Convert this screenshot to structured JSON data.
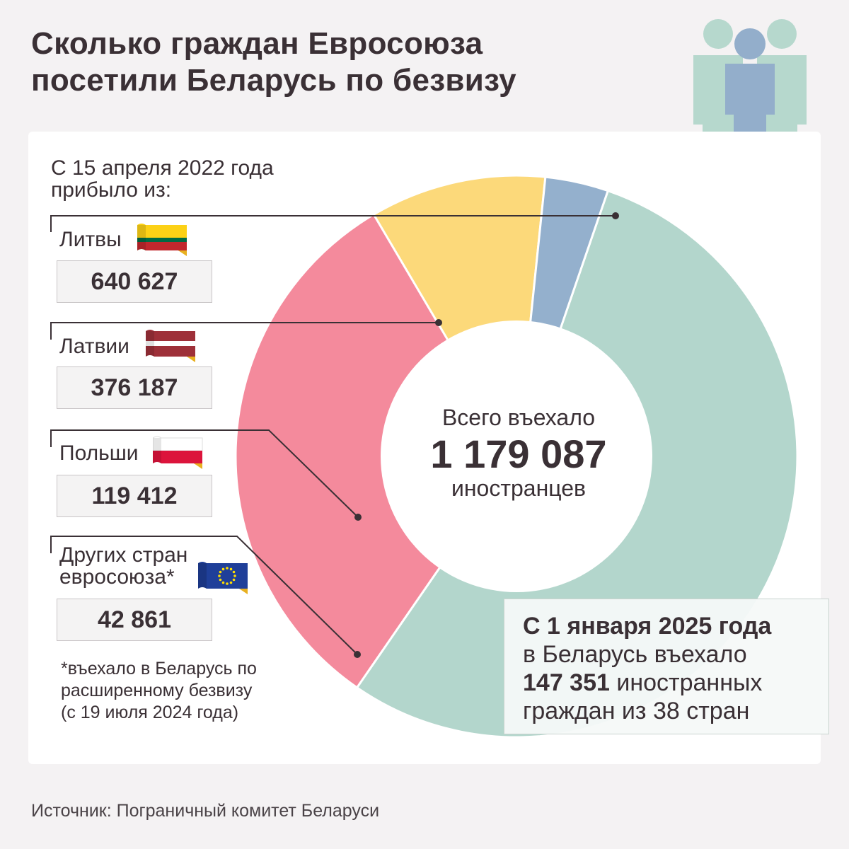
{
  "title": {
    "line1": "Сколько граждан Евросоюза",
    "line2": "посетили Беларусь по безвизу"
  },
  "intro": {
    "line1": "С 15 апреля 2022 года",
    "line2": "прибыло из:"
  },
  "countries": [
    {
      "label": "Литвы",
      "label2": "",
      "value": "640 627",
      "flag": "lithuania-flag"
    },
    {
      "label": "Латвии",
      "label2": "",
      "value": "376 187",
      "flag": "latvia-flag"
    },
    {
      "label": "Польши",
      "label2": "",
      "value": "119 412",
      "flag": "poland-flag"
    },
    {
      "label": "Других стран",
      "label2": "евросоюза*",
      "value": "42 861",
      "flag": "eu-flag"
    }
  ],
  "footnote": {
    "line1": "*въехало в Беларусь по",
    "line2": "расширенному безвизу",
    "line3": "(с 19 июля 2024 года)"
  },
  "center": {
    "line1": "Всего въехало",
    "total": "1 179 087",
    "line3": "иностранцев"
  },
  "infobox": {
    "line1": "С 1 января 2025 года",
    "line2": "в Беларусь въехало",
    "number": "147 351",
    "line3_rest": " иностранных",
    "line4": "граждан из 38 стран"
  },
  "source": "Источник: Пограничный комитет Беларуси",
  "chart_data": {
    "type": "pie",
    "donut": true,
    "total": 1179087,
    "categories": [
      "Литвы",
      "Латвии",
      "Польши",
      "Других стран евросоюза"
    ],
    "values": [
      640627,
      376187,
      119412,
      42861
    ],
    "colors": [
      "#b3d6cc",
      "#f48a9c",
      "#fcd97a",
      "#94b0cd"
    ]
  },
  "colors": {
    "lithuania": "#b3d6cc",
    "latvia": "#f48a9c",
    "poland": "#fcd97a",
    "other": "#94b0cd",
    "text": "#3a3035"
  }
}
